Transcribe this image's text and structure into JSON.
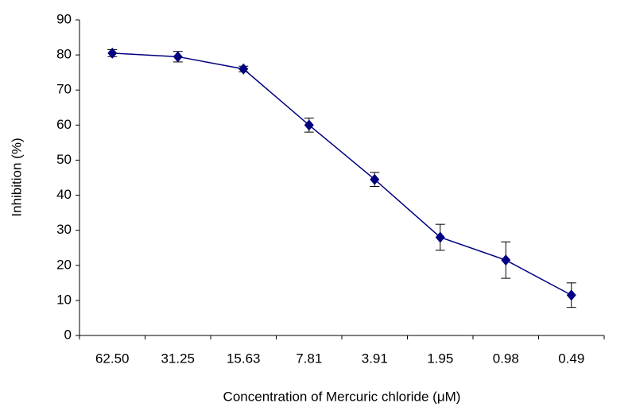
{
  "chart_data": {
    "type": "line",
    "xlabel": "Concentration of Mercuric chloride (μM)",
    "ylabel": "Inhibition (%)",
    "categories": [
      "62.50",
      "31.25",
      "15.63",
      "7.81",
      "3.91",
      "1.95",
      "0.98",
      "0.49"
    ],
    "values": [
      80.5,
      79.5,
      76,
      60,
      44.5,
      28,
      21.5,
      11.5
    ],
    "errors": [
      1,
      1.5,
      0.8,
      2,
      2,
      3.7,
      5.2,
      3.5
    ],
    "color": "#000080",
    "ylim": [
      0,
      90
    ],
    "yticks": [
      0,
      10,
      20,
      30,
      40,
      50,
      60,
      70,
      80,
      90
    ],
    "grid": false
  }
}
